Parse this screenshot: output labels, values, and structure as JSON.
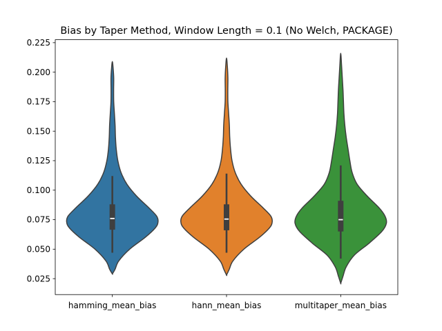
{
  "chart_data": {
    "type": "violin",
    "title": "Bias by Taper Method, Window Length = 0.1 (No Welch, PACKAGE)",
    "xlabel": "",
    "ylabel": "",
    "ylim": [
      0.0115,
      0.2275
    ],
    "yticks": [
      "0.025",
      "0.050",
      "0.075",
      "0.100",
      "0.125",
      "0.150",
      "0.175",
      "0.200",
      "0.225"
    ],
    "categories": [
      "hamming_mean_bias",
      "hann_mean_bias",
      "multitaper_mean_bias"
    ],
    "grid": false,
    "series": [
      {
        "category": "hamming_mean_bias",
        "color": "#3274a1",
        "min": 0.047,
        "q1": 0.0665,
        "median": 0.076,
        "q3": 0.088,
        "max": 0.112,
        "kde_range": [
          0.029,
          0.209
        ],
        "density": [
          [
            0.029,
            0.0
          ],
          [
            0.033,
            0.06
          ],
          [
            0.04,
            0.14
          ],
          [
            0.05,
            0.38
          ],
          [
            0.06,
            0.72
          ],
          [
            0.068,
            0.94
          ],
          [
            0.073,
            1.0
          ],
          [
            0.078,
            0.97
          ],
          [
            0.085,
            0.8
          ],
          [
            0.095,
            0.53
          ],
          [
            0.105,
            0.32
          ],
          [
            0.115,
            0.19
          ],
          [
            0.125,
            0.12
          ],
          [
            0.135,
            0.085
          ],
          [
            0.145,
            0.068
          ],
          [
            0.155,
            0.06
          ],
          [
            0.165,
            0.045
          ],
          [
            0.175,
            0.03
          ],
          [
            0.185,
            0.028
          ],
          [
            0.195,
            0.03
          ],
          [
            0.203,
            0.018
          ],
          [
            0.209,
            0.0
          ]
        ]
      },
      {
        "category": "hann_mean_bias",
        "color": "#e1812c",
        "min": 0.047,
        "q1": 0.066,
        "median": 0.0755,
        "q3": 0.088,
        "max": 0.114,
        "kde_range": [
          0.028,
          0.212
        ],
        "density": [
          [
            0.028,
            0.0
          ],
          [
            0.033,
            0.06
          ],
          [
            0.04,
            0.14
          ],
          [
            0.05,
            0.38
          ],
          [
            0.06,
            0.72
          ],
          [
            0.068,
            0.94
          ],
          [
            0.073,
            1.0
          ],
          [
            0.078,
            0.97
          ],
          [
            0.085,
            0.8
          ],
          [
            0.095,
            0.53
          ],
          [
            0.105,
            0.32
          ],
          [
            0.115,
            0.19
          ],
          [
            0.125,
            0.12
          ],
          [
            0.135,
            0.088
          ],
          [
            0.145,
            0.07
          ],
          [
            0.155,
            0.062
          ],
          [
            0.165,
            0.046
          ],
          [
            0.175,
            0.03
          ],
          [
            0.185,
            0.028
          ],
          [
            0.195,
            0.03
          ],
          [
            0.205,
            0.018
          ],
          [
            0.212,
            0.0
          ]
        ]
      },
      {
        "category": "multitaper_mean_bias",
        "color": "#3a923a",
        "min": 0.042,
        "q1": 0.065,
        "median": 0.075,
        "q3": 0.091,
        "max": 0.121,
        "kde_range": [
          0.021,
          0.216
        ],
        "density": [
          [
            0.021,
            0.0
          ],
          [
            0.027,
            0.05
          ],
          [
            0.035,
            0.12
          ],
          [
            0.045,
            0.3
          ],
          [
            0.055,
            0.62
          ],
          [
            0.065,
            0.9
          ],
          [
            0.072,
            1.0
          ],
          [
            0.078,
            0.97
          ],
          [
            0.085,
            0.84
          ],
          [
            0.095,
            0.58
          ],
          [
            0.105,
            0.36
          ],
          [
            0.115,
            0.25
          ],
          [
            0.125,
            0.2
          ],
          [
            0.135,
            0.16
          ],
          [
            0.145,
            0.12
          ],
          [
            0.155,
            0.09
          ],
          [
            0.165,
            0.07
          ],
          [
            0.175,
            0.06
          ],
          [
            0.185,
            0.05
          ],
          [
            0.195,
            0.035
          ],
          [
            0.205,
            0.02
          ],
          [
            0.216,
            0.0
          ]
        ]
      }
    ]
  }
}
